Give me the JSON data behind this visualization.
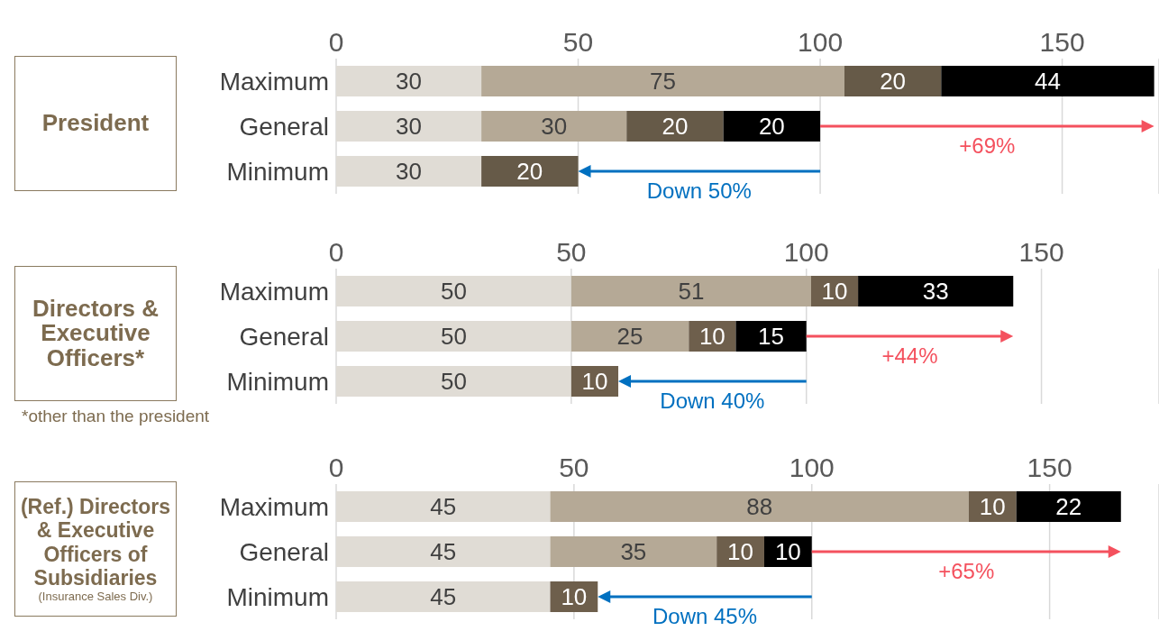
{
  "chart_data": [
    {
      "type": "bar",
      "orientation": "horizontal",
      "stacked": true,
      "title": "President",
      "categories": [
        "Maximum",
        "General",
        "Minimum"
      ],
      "xlim": [
        0,
        170
      ],
      "xticks": [
        0,
        50,
        100,
        150
      ],
      "grid": "x",
      "data_labels": true,
      "series": [
        {
          "color": "#e0dcd5",
          "values": [
            30,
            30,
            30
          ]
        },
        {
          "color": "#b5a996",
          "values": [
            75,
            30,
            null
          ]
        },
        {
          "color": "#665a48",
          "values": [
            20,
            20,
            20
          ]
        },
        {
          "color": "#000000",
          "values": [
            44,
            20,
            null
          ]
        }
      ],
      "annotations": [
        "+69%",
        "Down 50%"
      ]
    },
    {
      "type": "bar",
      "orientation": "horizontal",
      "stacked": true,
      "title": "Directors & Executive Officers*",
      "categories": [
        "Maximum",
        "General",
        "Minimum"
      ],
      "xlim": [
        0,
        175
      ],
      "xticks": [
        0,
        50,
        100,
        150
      ],
      "grid": "x",
      "data_labels": true,
      "series": [
        {
          "color": "#e0dcd5",
          "values": [
            50,
            50,
            50
          ]
        },
        {
          "color": "#b5a996",
          "values": [
            51,
            25,
            null
          ]
        },
        {
          "color": "#6e5f4c",
          "values": [
            10,
            10,
            10
          ]
        },
        {
          "color": "#000000",
          "values": [
            33,
            15,
            null
          ]
        }
      ],
      "annotations": [
        "+44%",
        "Down 40%",
        "*other than the president"
      ]
    },
    {
      "type": "bar",
      "orientation": "horizontal",
      "stacked": true,
      "title": "(Ref.) Directors & Executive Officers of Subsidiaries",
      "subtitle": "(Insurance Sales Div.)",
      "categories": [
        "Maximum",
        "General",
        "Minimum"
      ],
      "xlim": [
        0,
        173
      ],
      "xticks": [
        0,
        50,
        100,
        150
      ],
      "grid": "x",
      "data_labels": true,
      "series": [
        {
          "color": "#e0dcd5",
          "values": [
            45,
            45,
            45
          ]
        },
        {
          "color": "#b5a996",
          "values": [
            88,
            35,
            null
          ]
        },
        {
          "color": "#6e5f4c",
          "values": [
            10,
            10,
            10
          ]
        },
        {
          "color": "#000000",
          "values": [
            22,
            10,
            null
          ]
        }
      ],
      "annotations": [
        "+65%",
        "Down 45%"
      ]
    }
  ]
}
